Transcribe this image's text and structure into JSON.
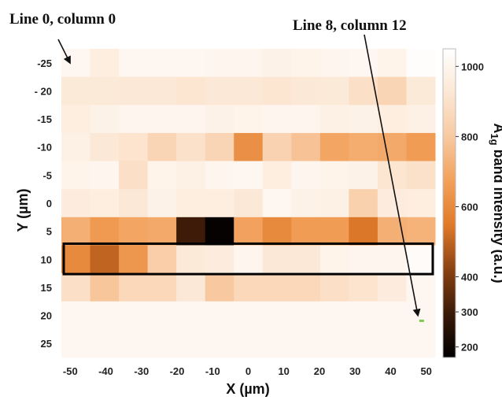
{
  "chart_data": {
    "type": "heatmap",
    "title": "",
    "xlabel": "X (µm)",
    "ylabel": "Y (µm)",
    "x_ticks": [
      "-50",
      "-40",
      "-30",
      "-20",
      "-10",
      "0",
      "10",
      "20",
      "30",
      "40",
      "50"
    ],
    "y_ticks": [
      "-25",
      "- 20",
      "-15",
      "-10",
      "-5",
      "0",
      "5",
      "10",
      "15",
      "20",
      "25"
    ],
    "x_values": [
      -50,
      -40,
      -30,
      -20,
      -10,
      -5,
      0,
      5,
      10,
      20,
      30,
      40,
      50
    ],
    "y_values": [
      -25,
      -20,
      -15,
      -10,
      -5,
      0,
      5,
      10,
      15,
      20,
      25
    ],
    "colorbar": {
      "label_main": "A",
      "label_sub": "1g",
      "label_rest": " band intensity (a.u.)",
      "ticks": [
        200,
        300,
        400,
        600,
        800,
        1000
      ],
      "tick_labels": [
        "200",
        "300",
        "400",
        "600",
        "800",
        "1000"
      ],
      "range": [
        170,
        1050
      ]
    },
    "colormap": [
      "#000000",
      "#3a1a08",
      "#8a4212",
      "#e07a2a",
      "#f2a05a",
      "#f8c9a0",
      "#fce7d4",
      "#ffffff"
    ],
    "values": [
      [
        1010,
        960,
        1010,
        1010,
        1010,
        1000,
        1000,
        980,
        990,
        1000,
        1010,
        990,
        1040
      ],
      [
        940,
        940,
        930,
        930,
        920,
        930,
        930,
        920,
        930,
        940,
        890,
        850,
        940
      ],
      [
        960,
        980,
        1000,
        1000,
        1000,
        980,
        990,
        1000,
        1000,
        970,
        980,
        960,
        970
      ],
      [
        970,
        930,
        910,
        850,
        900,
        850,
        620,
        840,
        780,
        690,
        710,
        700,
        660
      ],
      [
        990,
        1000,
        890,
        990,
        970,
        1000,
        1010,
        960,
        1000,
        990,
        980,
        920,
        900
      ],
      [
        950,
        960,
        930,
        980,
        960,
        960,
        930,
        1010,
        980,
        970,
        830,
        950,
        960
      ],
      [
        720,
        650,
        690,
        700,
        300,
        180,
        680,
        600,
        660,
        660,
        540,
        720,
        730
      ],
      [
        600,
        500,
        640,
        820,
        940,
        950,
        1000,
        930,
        930,
        990,
        1000,
        1000,
        1030
      ],
      [
        890,
        790,
        860,
        860,
        930,
        800,
        860,
        860,
        860,
        890,
        910,
        950,
        1010
      ],
      [
        1010,
        1010,
        1010,
        1010,
        1010,
        1010,
        1010,
        1010,
        1010,
        1010,
        1010,
        1010,
        1010
      ],
      [
        1010,
        1010,
        1010,
        1010,
        1010,
        1010,
        1010,
        1010,
        1010,
        1010,
        1010,
        1010,
        1010
      ]
    ],
    "grid": false,
    "highlight_row": 7,
    "annotations": [
      {
        "text": "Line 0, column 0",
        "target_row": 0,
        "target_col": 0
      },
      {
        "text": "Line 8, column 12",
        "target_row": 8,
        "target_col": 12
      }
    ],
    "scale_bar_color": "#7ec850"
  }
}
